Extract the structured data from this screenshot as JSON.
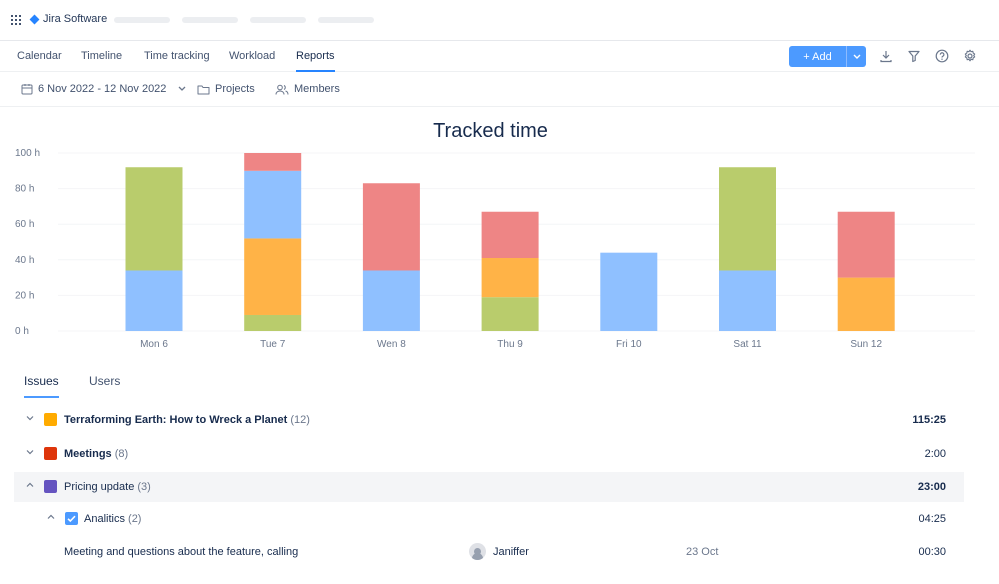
{
  "app": {
    "name": "Jira Software"
  },
  "nav": {
    "tabs": [
      {
        "label": "Calendar"
      },
      {
        "label": "Timeline"
      },
      {
        "label": "Time tracking"
      },
      {
        "label": "Workload"
      },
      {
        "label": "Reports"
      }
    ],
    "active_tab": "Reports",
    "add_label": "+ Add"
  },
  "toolbar_icons": [
    "download-icon",
    "filter-icon",
    "help-icon",
    "settings-icon"
  ],
  "filters": {
    "date_range": "6 Nov 2022 - 12 Nov 2022",
    "projects": "Projects",
    "members": "Members"
  },
  "colors": {
    "green": "#b9cc6c",
    "blue": "#8fc0ff",
    "orange": "#ffb347",
    "red": "#ee8585",
    "accent": "#4c9aff"
  },
  "chart_data": {
    "type": "bar",
    "stacked": true,
    "title": "Tracked time",
    "ylim": [
      0,
      100
    ],
    "yticks": [
      "100 h",
      "80 h",
      "60 h",
      "40 h",
      "20 h",
      "0 h"
    ],
    "categories": [
      "Mon 6",
      "Tue 7",
      "Wen 8",
      "Thu 9",
      "Fri 10",
      "Sat 11",
      "Sun 12"
    ],
    "series": [
      {
        "color": "#b9cc6c",
        "values": [
          0,
          9,
          0,
          19,
          0,
          0,
          0
        ]
      },
      {
        "color": "#8fc0ff",
        "values": [
          34,
          0,
          34,
          0,
          44,
          34,
          0
        ]
      },
      {
        "color": "#ffb347",
        "values": [
          0,
          43,
          0,
          22,
          0,
          0,
          30
        ]
      },
      {
        "color": "#8fc0ff",
        "values": [
          0,
          38,
          0,
          0,
          0,
          0,
          0
        ]
      },
      {
        "color": "#b9cc6c",
        "values": [
          58,
          0,
          0,
          0,
          0,
          58,
          0
        ]
      },
      {
        "color": "#ee8585",
        "values": [
          0,
          10,
          49,
          26,
          0,
          0,
          37
        ]
      }
    ],
    "grid": true
  },
  "subtabs": {
    "issues": "Issues",
    "users": "Users"
  },
  "rows": [
    {
      "label": "Terraforming Earth: How to Wreck a Planet",
      "count": "(12)",
      "time": "115:25",
      "icon_color": "#ffab00"
    },
    {
      "label": "Meetings",
      "count": "(8)",
      "time": "2:00",
      "icon_color": "#de350b"
    },
    {
      "label": "Pricing update",
      "count": "(3)",
      "time": "23:00",
      "icon_color": "#6554c0"
    },
    {
      "label": "Analitics",
      "count": "(2)",
      "time": "04:25",
      "icon_color": "#4c9aff"
    },
    {
      "label": "Meeting and questions about the feature, calling",
      "user": "Janiffer",
      "date": "23 Oct",
      "time": "00:30"
    }
  ]
}
